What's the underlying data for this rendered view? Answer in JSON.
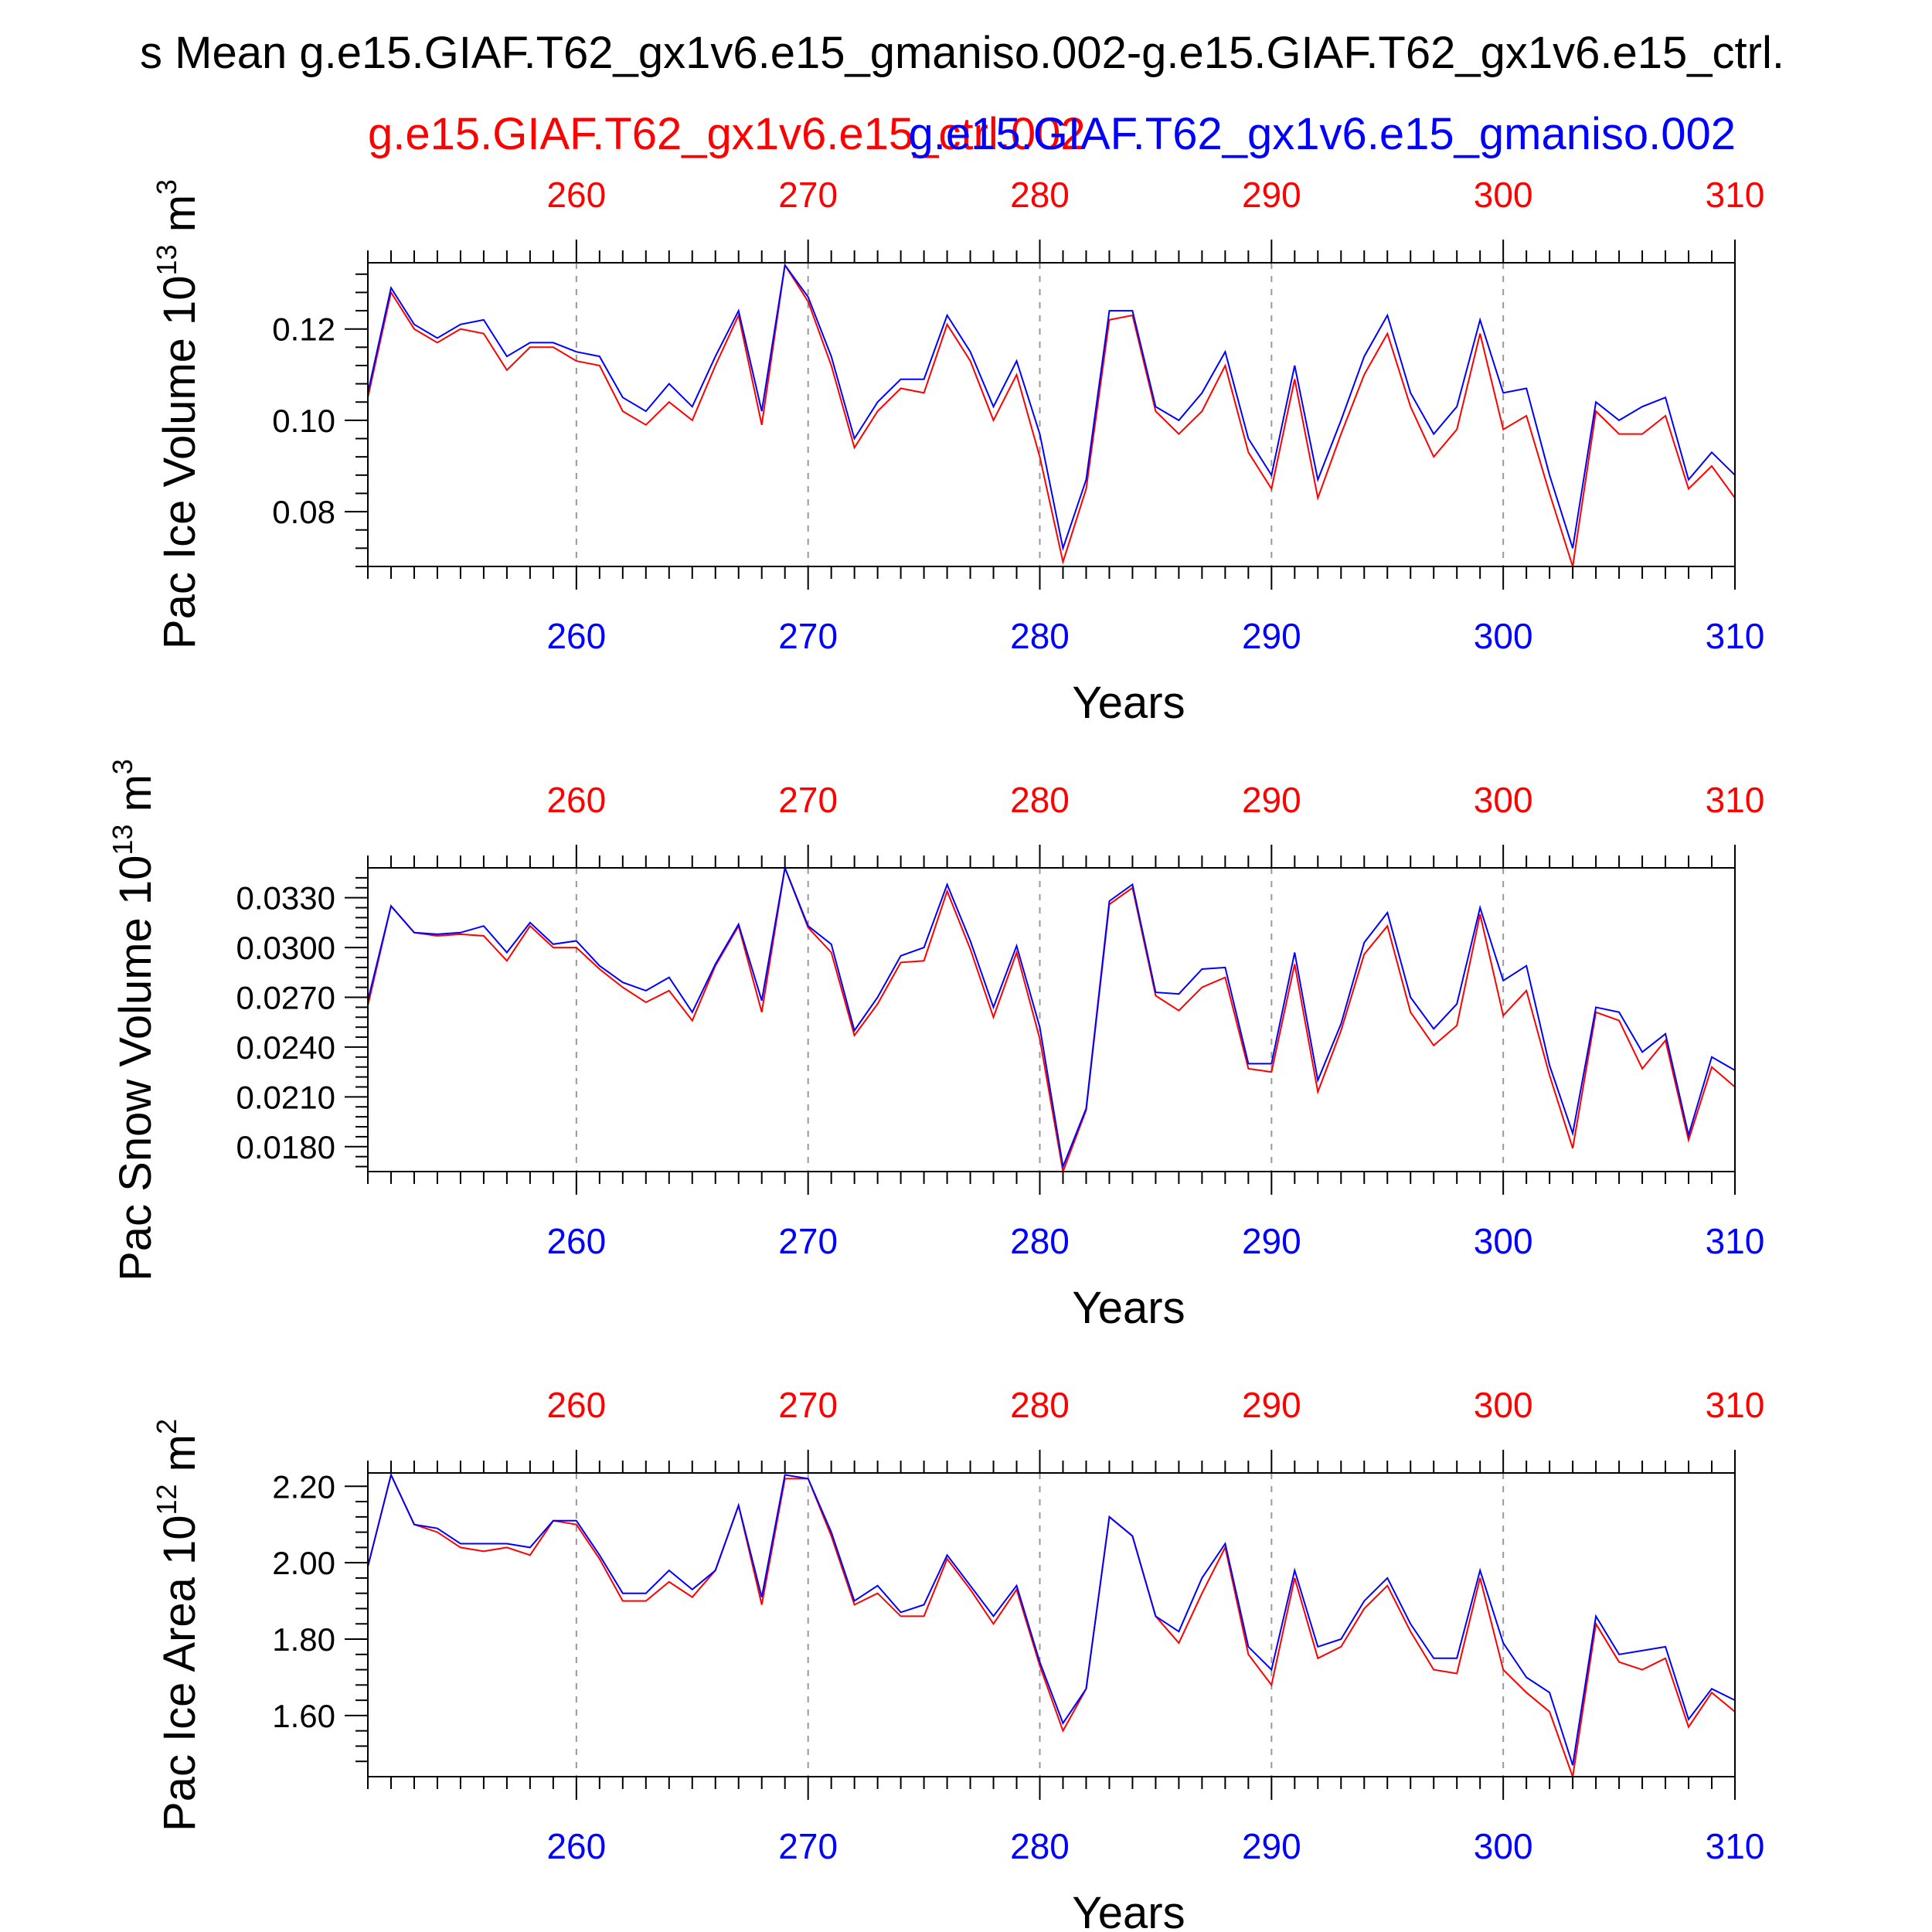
{
  "figure": {
    "title": "s Mean g.e15.GIAF.T62_gx1v6.e15_gmaniso.002-g.e15.GIAF.T62_gx1v6.e15_ctrl.",
    "legend_red": "g.e15.GIAF.T62_gx1v6.e15_ctrl.002",
    "legend_blue": "g.e15.GIAF.T62_gx1v6.e15_gmaniso.002"
  },
  "colors": {
    "red": "#ff0000",
    "blue": "#0000ff",
    "axis": "#000000",
    "grid": "#999999"
  },
  "chart_data": [
    {
      "type": "line",
      "ylabel_main": "Pac Ice Volume 10",
      "ylabel_exp": "13",
      "ylabel_unit": " m",
      "ylabel_unit_exp": "3",
      "xlabel": "Years",
      "xlim": [
        251,
        310
      ],
      "ylim": [
        0.068,
        0.1345
      ],
      "xticks": [
        260,
        270,
        280,
        290,
        300,
        310
      ],
      "xtick_labels": [
        "260",
        "270",
        "280",
        "290",
        "300",
        "310"
      ],
      "yticks": [
        0.08,
        0.1,
        0.12
      ],
      "ytick_labels": [
        "0.08",
        "0.10",
        "0.12"
      ],
      "x_start": 251,
      "series": [
        {
          "name": "g.e15.GIAF.T62_gx1v6.e15_ctrl.002",
          "color": "red",
          "values": [
            0.105,
            0.128,
            0.12,
            0.117,
            0.12,
            0.119,
            0.111,
            0.116,
            0.116,
            0.113,
            0.112,
            0.102,
            0.099,
            0.104,
            0.1,
            0.112,
            0.123,
            0.099,
            0.134,
            0.126,
            0.112,
            0.094,
            0.102,
            0.107,
            0.106,
            0.121,
            0.113,
            0.1,
            0.11,
            0.092,
            0.069,
            0.085,
            0.122,
            0.123,
            0.102,
            0.097,
            0.102,
            0.112,
            0.093,
            0.085,
            0.109,
            0.083,
            0.097,
            0.11,
            0.119,
            0.103,
            0.092,
            0.098,
            0.119,
            0.098,
            0.101,
            0.084,
            0.068,
            0.102,
            0.097,
            0.097,
            0.101,
            0.085,
            0.09,
            0.083
          ]
        },
        {
          "name": "g.e15.GIAF.T62_gx1v6.e15_gmaniso.002",
          "color": "blue",
          "values": [
            0.106,
            0.129,
            0.121,
            0.118,
            0.121,
            0.122,
            0.114,
            0.117,
            0.117,
            0.115,
            0.114,
            0.105,
            0.102,
            0.108,
            0.103,
            0.114,
            0.124,
            0.102,
            0.134,
            0.127,
            0.114,
            0.096,
            0.104,
            0.109,
            0.109,
            0.123,
            0.115,
            0.103,
            0.113,
            0.097,
            0.072,
            0.087,
            0.124,
            0.124,
            0.103,
            0.1,
            0.106,
            0.115,
            0.096,
            0.088,
            0.112,
            0.087,
            0.1,
            0.114,
            0.123,
            0.106,
            0.097,
            0.103,
            0.122,
            0.106,
            0.107,
            0.088,
            0.072,
            0.104,
            0.1,
            0.103,
            0.105,
            0.087,
            0.093,
            0.088
          ]
        }
      ]
    },
    {
      "type": "line",
      "ylabel_main": "Pac Snow Volume 10",
      "ylabel_exp": "13",
      "ylabel_unit": " m",
      "ylabel_unit_exp": "3",
      "xlabel": "Years",
      "xlim": [
        251,
        310
      ],
      "ylim": [
        0.0165,
        0.0348
      ],
      "xticks": [
        260,
        270,
        280,
        290,
        300,
        310
      ],
      "xtick_labels": [
        "260",
        "270",
        "280",
        "290",
        "300",
        "310"
      ],
      "yticks": [
        0.018,
        0.021,
        0.024,
        0.027,
        0.03,
        0.033
      ],
      "ytick_labels": [
        "0.0180",
        "0.0210",
        "0.0240",
        "0.0270",
        "0.0300",
        "0.0330"
      ],
      "x_start": 251,
      "series": [
        {
          "name": "g.e15.GIAF.T62_gx1v6.e15_ctrl.002",
          "color": "red",
          "values": [
            0.0265,
            0.0325,
            0.0309,
            0.0307,
            0.0308,
            0.0307,
            0.0292,
            0.0313,
            0.03,
            0.03,
            0.0287,
            0.0276,
            0.0267,
            0.0274,
            0.0256,
            0.0289,
            0.0313,
            0.0261,
            0.0348,
            0.0312,
            0.0297,
            0.0247,
            0.0266,
            0.0291,
            0.0292,
            0.0334,
            0.0299,
            0.0258,
            0.0297,
            0.0245,
            0.0165,
            0.0202,
            0.0326,
            0.0336,
            0.0271,
            0.0262,
            0.0276,
            0.0282,
            0.0227,
            0.0225,
            0.029,
            0.0213,
            0.025,
            0.0296,
            0.0313,
            0.0261,
            0.0241,
            0.0253,
            0.032,
            0.0259,
            0.0274,
            0.0223,
            0.0179,
            0.0261,
            0.0256,
            0.0227,
            0.0244,
            0.0184,
            0.0228,
            0.0216
          ]
        },
        {
          "name": "g.e15.GIAF.T62_gx1v6.e15_gmaniso.002",
          "color": "blue",
          "values": [
            0.0268,
            0.0325,
            0.0309,
            0.0308,
            0.0309,
            0.0313,
            0.0297,
            0.0315,
            0.0302,
            0.0304,
            0.0289,
            0.0279,
            0.0274,
            0.0282,
            0.0261,
            0.029,
            0.0314,
            0.0268,
            0.0348,
            0.0313,
            0.0302,
            0.025,
            0.027,
            0.0295,
            0.03,
            0.0338,
            0.0304,
            0.0264,
            0.0301,
            0.0252,
            0.0168,
            0.0203,
            0.0328,
            0.0338,
            0.0273,
            0.0272,
            0.0287,
            0.0288,
            0.023,
            0.023,
            0.0297,
            0.022,
            0.0254,
            0.0303,
            0.0321,
            0.027,
            0.0251,
            0.0266,
            0.0324,
            0.028,
            0.0289,
            0.0229,
            0.0188,
            0.0264,
            0.0261,
            0.0237,
            0.0248,
            0.0187,
            0.0234,
            0.0226
          ]
        }
      ]
    },
    {
      "type": "line",
      "ylabel_main": "Pac Ice Area 10",
      "ylabel_exp": "12",
      "ylabel_unit": " m",
      "ylabel_unit_exp": "2",
      "xlabel": "Years",
      "xlim": [
        251,
        310
      ],
      "ylim": [
        1.44,
        2.235
      ],
      "xticks": [
        260,
        270,
        280,
        290,
        300,
        310
      ],
      "xtick_labels": [
        "260",
        "270",
        "280",
        "290",
        "300",
        "310"
      ],
      "yticks": [
        1.6,
        1.8,
        2.0,
        2.2
      ],
      "ytick_labels": [
        "1.60",
        "1.80",
        "2.00",
        "2.20"
      ],
      "x_start": 251,
      "series": [
        {
          "name": "g.e15.GIAF.T62_gx1v6.e15_ctrl.002",
          "color": "red",
          "values": [
            1.99,
            2.23,
            2.1,
            2.08,
            2.04,
            2.03,
            2.04,
            2.02,
            2.11,
            2.1,
            2.01,
            1.9,
            1.9,
            1.95,
            1.91,
            1.98,
            2.15,
            1.89,
            2.22,
            2.22,
            2.07,
            1.89,
            1.92,
            1.86,
            1.86,
            2.01,
            1.93,
            1.84,
            1.93,
            1.73,
            1.56,
            1.67,
            2.12,
            2.07,
            1.86,
            1.79,
            1.92,
            2.04,
            1.76,
            1.68,
            1.96,
            1.75,
            1.78,
            1.88,
            1.94,
            1.82,
            1.72,
            1.71,
            1.96,
            1.72,
            1.66,
            1.61,
            1.44,
            1.84,
            1.74,
            1.72,
            1.75,
            1.57,
            1.66,
            1.61
          ]
        },
        {
          "name": "g.e15.GIAF.T62_gx1v6.e15_gmaniso.002",
          "color": "blue",
          "values": [
            1.99,
            2.23,
            2.1,
            2.09,
            2.05,
            2.05,
            2.05,
            2.04,
            2.11,
            2.11,
            2.02,
            1.92,
            1.92,
            1.98,
            1.93,
            1.98,
            2.15,
            1.91,
            2.23,
            2.22,
            2.08,
            1.9,
            1.94,
            1.87,
            1.89,
            2.02,
            1.94,
            1.86,
            1.94,
            1.74,
            1.58,
            1.67,
            2.12,
            2.07,
            1.86,
            1.82,
            1.96,
            2.05,
            1.78,
            1.72,
            1.98,
            1.78,
            1.8,
            1.9,
            1.96,
            1.84,
            1.75,
            1.75,
            1.98,
            1.79,
            1.7,
            1.66,
            1.47,
            1.86,
            1.76,
            1.77,
            1.78,
            1.59,
            1.67,
            1.64
          ]
        }
      ]
    }
  ]
}
